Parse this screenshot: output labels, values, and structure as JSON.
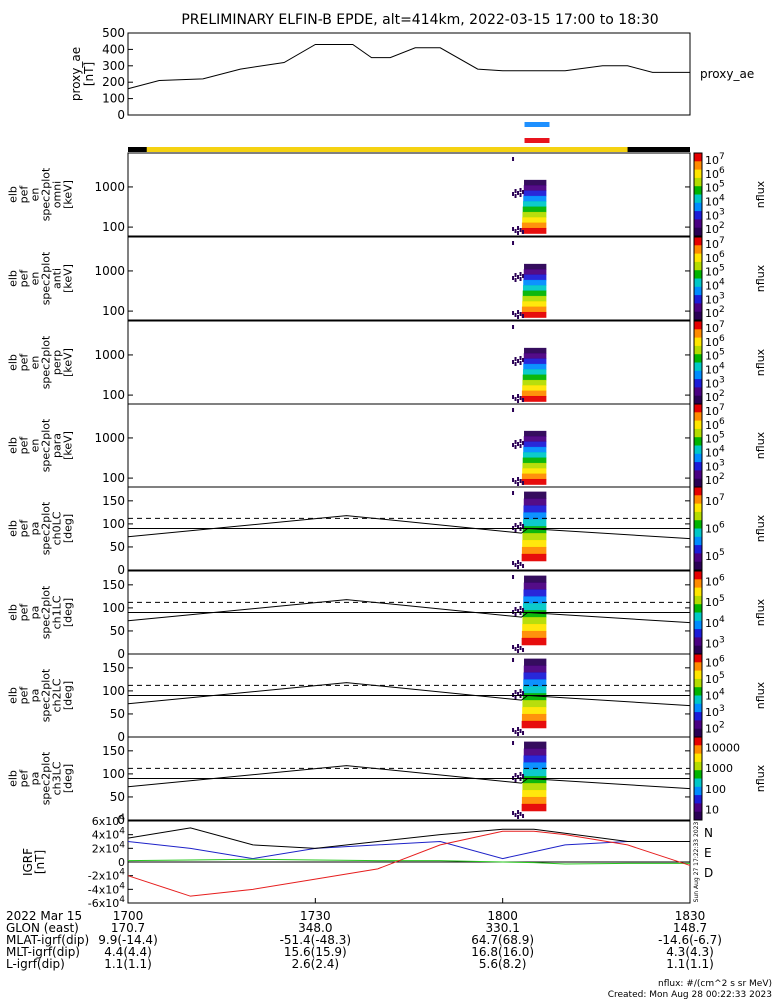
{
  "title": "PRELIMINARY ELFIN-B EPDE, alt=414km, 2022-03-15 17:00 to 18:30",
  "colors": {
    "blue_bar": "#1e90ff",
    "red_bar": "#e8141e",
    "orbit_yellow": "#f5d211",
    "igrf_n": "#1e22c8",
    "igrf_e": "#28c81e",
    "igrf_d": "#e61e1e"
  },
  "time_axis": {
    "ticks": [
      "1700",
      "1730",
      "1800",
      "1830"
    ],
    "date_label": "2022 Mar 15",
    "rows": [
      {
        "label": "GLON (east)",
        "values": [
          "170.7",
          "348.0",
          "330.1",
          "148.7"
        ]
      },
      {
        "label": "MLAT-igrf(dip)",
        "values": [
          "9.9(-14.4)",
          "-51.4(-48.3)",
          "64.7(68.9)",
          "-14.6(-6.7)"
        ]
      },
      {
        "label": "MLT-igrf(dip)",
        "values": [
          "4.4(4.4)",
          "15.6(15.9)",
          "16.8(16.0)",
          "4.3(4.3)"
        ]
      },
      {
        "label": "L-igrf(dip)",
        "values": [
          "1.1(1.1)",
          "2.6(2.4)",
          "5.6(8.2)",
          "1.1(1.1)"
        ]
      }
    ]
  },
  "footer": {
    "units": "nflux: #/(cm^2 s sr MeV)",
    "created": "Created: Mon Aug 28 00:22:33 2023",
    "stamp": "Sun Aug 27 17:22:33 2023"
  },
  "chart_data": [
    {
      "type": "line",
      "panel": "proxy_ae",
      "ylabel_lines": [
        "proxy_ae",
        "[nT]"
      ],
      "series_label": "proxy_ae",
      "ylim": [
        0,
        500
      ],
      "yticks": [
        "0",
        "100",
        "200",
        "300",
        "400",
        "500"
      ],
      "x_minutes": [
        0,
        5,
        12,
        18,
        25,
        30,
        36,
        39,
        42,
        46,
        50,
        56,
        60,
        62,
        70,
        76,
        80,
        84,
        90
      ],
      "values": [
        160,
        210,
        220,
        280,
        320,
        430,
        430,
        350,
        350,
        410,
        410,
        280,
        270,
        270,
        270,
        300,
        300,
        260,
        260
      ]
    },
    {
      "type": "heatmap",
      "panel": "en omni",
      "ylabel_lines": [
        "elb",
        "pef",
        "en",
        "spec2plot",
        "omni",
        "[keV]"
      ],
      "yscale": "log",
      "ylim": [
        60,
        7000
      ],
      "yticks": [
        "100",
        "1000"
      ],
      "zlabel": "nflux",
      "zticks": [
        "10^2",
        "10^3",
        "10^4",
        "10^5",
        "10^6",
        "10^7"
      ],
      "active_minutes": [
        63,
        67
      ]
    },
    {
      "type": "heatmap",
      "panel": "en anti",
      "ylabel_lines": [
        "elb",
        "pef",
        "en",
        "spec2plot",
        "anti",
        "[keV]"
      ],
      "yscale": "log",
      "ylim": [
        60,
        7000
      ],
      "yticks": [
        "100",
        "1000"
      ],
      "zlabel": "nflux",
      "zticks": [
        "10^2",
        "10^3",
        "10^4",
        "10^5",
        "10^6",
        "10^7"
      ],
      "active_minutes": [
        63,
        67
      ]
    },
    {
      "type": "heatmap",
      "panel": "en perp",
      "ylabel_lines": [
        "elb",
        "pef",
        "en",
        "spec2plot",
        "perp",
        "[keV]"
      ],
      "yscale": "log",
      "ylim": [
        60,
        7000
      ],
      "yticks": [
        "100",
        "1000"
      ],
      "zlabel": "nflux",
      "zticks": [
        "10^2",
        "10^3",
        "10^4",
        "10^5",
        "10^6",
        "10^7"
      ],
      "active_minutes": [
        63,
        67
      ]
    },
    {
      "type": "heatmap",
      "panel": "en para",
      "ylabel_lines": [
        "elb",
        "pef",
        "en",
        "spec2plot",
        "para",
        "[keV]"
      ],
      "yscale": "log",
      "ylim": [
        60,
        7000
      ],
      "yticks": [
        "100",
        "1000"
      ],
      "zlabel": "nflux",
      "zticks": [
        "10^2",
        "10^3",
        "10^4",
        "10^5",
        "10^6",
        "10^7"
      ],
      "active_minutes": [
        63,
        67
      ]
    },
    {
      "type": "heatmap",
      "panel": "pa ch0LC",
      "ylabel_lines": [
        "elb",
        "pef",
        "pa",
        "spec2plot",
        "ch0LC",
        "[deg]"
      ],
      "ylim": [
        0,
        180
      ],
      "yticks": [
        "0",
        "50",
        "100",
        "150"
      ],
      "zlabel": "nflux",
      "zticks": [
        "10^5",
        "10^6",
        "10^7"
      ],
      "active_minutes": [
        63,
        67
      ]
    },
    {
      "type": "heatmap",
      "panel": "pa ch1LC",
      "ylabel_lines": [
        "elb",
        "pef",
        "pa",
        "spec2plot",
        "ch1LC",
        "[deg]"
      ],
      "ylim": [
        0,
        180
      ],
      "yticks": [
        "0",
        "50",
        "100",
        "150"
      ],
      "zlabel": "nflux",
      "zticks": [
        "10^3",
        "10^4",
        "10^5",
        "10^6"
      ],
      "active_minutes": [
        63,
        67
      ]
    },
    {
      "type": "heatmap",
      "panel": "pa ch2LC",
      "ylabel_lines": [
        "elb",
        "pef",
        "pa",
        "spec2plot",
        "ch2LC",
        "[deg]"
      ],
      "ylim": [
        0,
        180
      ],
      "yticks": [
        "0",
        "50",
        "100",
        "150"
      ],
      "zlabel": "nflux",
      "zticks": [
        "10^2",
        "10^3",
        "10^4",
        "10^5",
        "10^6"
      ],
      "active_minutes": [
        63,
        67
      ]
    },
    {
      "type": "heatmap",
      "panel": "pa ch3LC",
      "ylabel_lines": [
        "elb",
        "pef",
        "pa",
        "spec2plot",
        "ch3LC",
        "[deg]"
      ],
      "ylim": [
        0,
        180
      ],
      "yticks": [
        "0",
        "50",
        "100",
        "150"
      ],
      "zlabel": "nflux",
      "zticks": [
        "10",
        "100",
        "1000",
        "10000"
      ],
      "active_minutes": [
        63,
        67
      ]
    },
    {
      "type": "line",
      "panel": "IGRF",
      "ylabel_lines": [
        "IGRF",
        "[nT]"
      ],
      "ylim": [
        -60000,
        60000
      ],
      "yticks": [
        "-6x10^4",
        "-4x10^4",
        "-2x10^4",
        "0",
        "2x10^4",
        "4x10^4",
        "6x10^4"
      ],
      "x_minutes": [
        0,
        10,
        20,
        30,
        40,
        50,
        60,
        65,
        70,
        80,
        90
      ],
      "series": [
        {
          "name": "N",
          "color": "#1e22c8",
          "values": [
            30000,
            20000,
            5000,
            20000,
            25000,
            30000,
            5000,
            15000,
            25000,
            30000,
            30000
          ]
        },
        {
          "name": "E",
          "color": "#28c81e",
          "values": [
            2000,
            3000,
            4000,
            3000,
            2000,
            2000,
            0,
            -1000,
            -3000,
            -2000,
            -2000
          ]
        },
        {
          "name": "D",
          "color": "#e61e1e",
          "values": [
            -20000,
            -50000,
            -40000,
            -25000,
            -10000,
            25000,
            45000,
            45000,
            40000,
            25000,
            -5000
          ]
        },
        {
          "name": "",
          "color": "#000000",
          "values": [
            35000,
            50000,
            25000,
            20000,
            30000,
            40000,
            48000,
            48000,
            42000,
            30000,
            30000
          ]
        }
      ]
    }
  ]
}
